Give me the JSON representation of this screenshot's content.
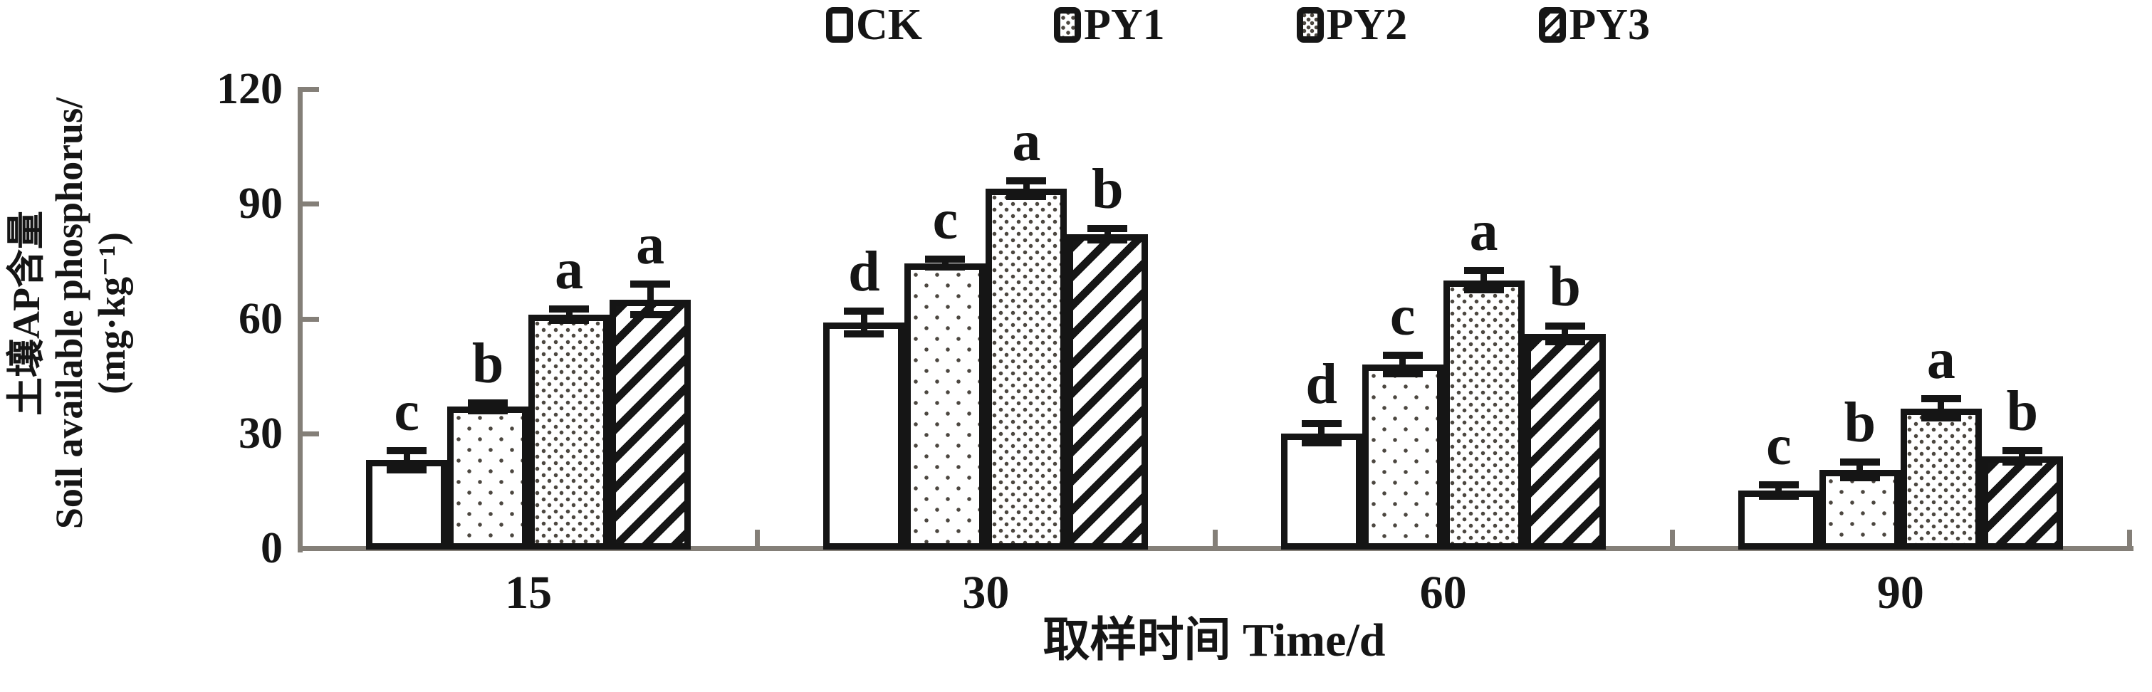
{
  "colors": {
    "ink": "#151515",
    "axis_line": "#847f78",
    "bar_fill": "#ffffff"
  },
  "legend": {
    "items": [
      {
        "label": "CK",
        "pattern": "solid-white"
      },
      {
        "label": "PY1",
        "pattern": "dots-sparse"
      },
      {
        "label": "PY2",
        "pattern": "dots-dense"
      },
      {
        "label": "PY3",
        "pattern": "diagonal-hatch"
      }
    ]
  },
  "y_axis": {
    "title_lines": [
      "土壤AP含量",
      "Soil available phosphorus/",
      "(mg·kg⁻¹)"
    ],
    "ticks": [
      0,
      30,
      60,
      90,
      120
    ],
    "min": 0,
    "max": 120
  },
  "x_axis": {
    "title": "取样时间 Time/d",
    "categories": [
      "15",
      "30",
      "60",
      "90"
    ]
  },
  "chart_data": {
    "type": "bar",
    "title": "",
    "xlabel": "取样时间 Time/d",
    "ylabel": "土壤AP含量 Soil available phosphorus/(mg·kg⁻¹)",
    "ylim": [
      0,
      120
    ],
    "grid": false,
    "legend_position": "top-center",
    "categories": [
      "15",
      "30",
      "60",
      "90"
    ],
    "series": [
      {
        "name": "CK",
        "pattern": "solid-white",
        "values": [
          23,
          59,
          30,
          15
        ],
        "errors": [
          2.5,
          3,
          2.5,
          1.5
        ],
        "sig_letters": [
          "c",
          "d",
          "d",
          "c"
        ]
      },
      {
        "name": "PY1",
        "pattern": "dots-sparse",
        "values": [
          37,
          74.5,
          48,
          20.5
        ],
        "errors": [
          1,
          1,
          2.5,
          2
        ],
        "sig_letters": [
          "b",
          "c",
          "c",
          "b"
        ]
      },
      {
        "name": "PY2",
        "pattern": "dots-dense",
        "values": [
          61,
          94,
          70,
          36.5
        ],
        "errors": [
          1.5,
          2,
          2.5,
          2.5
        ],
        "sig_letters": [
          "a",
          "a",
          "a",
          "a"
        ]
      },
      {
        "name": "PY3",
        "pattern": "diagonal-hatch",
        "values": [
          65,
          82,
          56,
          24
        ],
        "errors": [
          4,
          1.5,
          2,
          1.5
        ],
        "sig_letters": [
          "a",
          "b",
          "b",
          "b"
        ]
      }
    ]
  }
}
